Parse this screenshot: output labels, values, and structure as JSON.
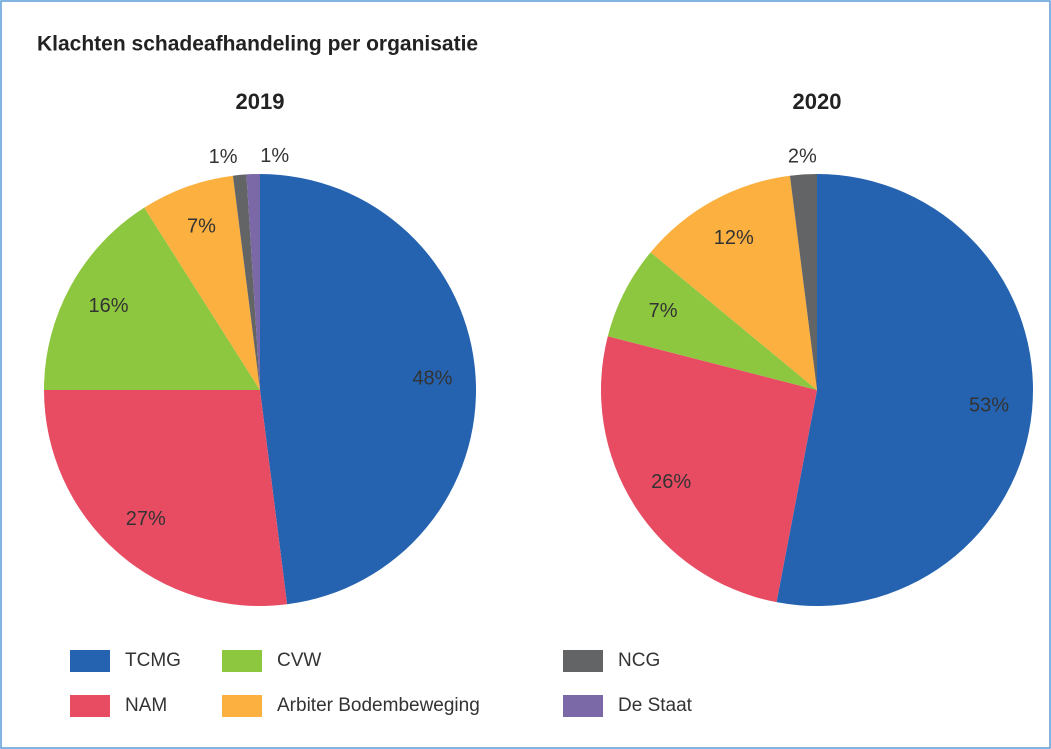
{
  "title": "Klachten schadeafhandeling per organisatie",
  "chart_data": [
    {
      "type": "pie",
      "title": "2019",
      "categories": [
        "TCMG",
        "NAM",
        "CVW",
        "Arbiter Bodembeweging",
        "NCG",
        "De Staat"
      ],
      "values": [
        48,
        27,
        16,
        7,
        1,
        1
      ],
      "value_labels": [
        "48%",
        "27%",
        "16%",
        "7%",
        "1%",
        "1%"
      ],
      "colors": [
        "#2563b0",
        "#e84c63",
        "#8dc63f",
        "#fbb040",
        "#636466",
        "#7b68a6"
      ]
    },
    {
      "type": "pie",
      "title": "2020",
      "categories": [
        "TCMG",
        "NAM",
        "CVW",
        "Arbiter Bodembeweging",
        "NCG"
      ],
      "values": [
        53,
        26,
        7,
        12,
        2
      ],
      "value_labels": [
        "53%",
        "26%",
        "7%",
        "12%",
        "2%"
      ],
      "colors": [
        "#2563b0",
        "#e84c63",
        "#8dc63f",
        "#fbb040",
        "#636466"
      ]
    }
  ]
}
